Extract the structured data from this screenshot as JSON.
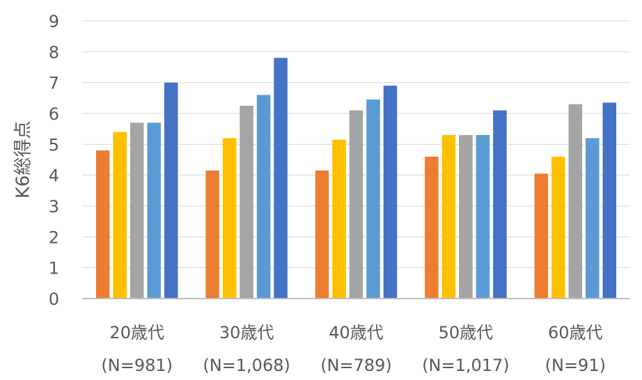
{
  "chart_data": {
    "type": "bar",
    "ylabel": "K6総得点",
    "ylim": [
      0,
      9
    ],
    "yticks": [
      0,
      1,
      2,
      3,
      4,
      5,
      6,
      7,
      8,
      9
    ],
    "grid": true,
    "categories": [
      {
        "line1": "20歳代",
        "line2": "(N=981)"
      },
      {
        "line1": "30歳代",
        "line2": "(N=1,068)"
      },
      {
        "line1": "40歳代",
        "line2": "(N=789)"
      },
      {
        "line1": "50歳代",
        "line2": "(N=1,017)"
      },
      {
        "line1": "60歳代",
        "line2": "(N=91)"
      }
    ],
    "series": [
      {
        "color": "#ED7D31",
        "values": [
          4.8,
          4.15,
          4.15,
          4.6,
          4.05
        ]
      },
      {
        "color": "#FFC000",
        "values": [
          5.4,
          5.2,
          5.15,
          5.3,
          4.6
        ]
      },
      {
        "color": "#A5A5A5",
        "values": [
          5.7,
          6.25,
          6.1,
          5.3,
          6.3
        ]
      },
      {
        "color": "#5B9BD5",
        "values": [
          5.7,
          6.6,
          6.45,
          5.3,
          5.2
        ]
      },
      {
        "color": "#4472C4",
        "values": [
          7.0,
          7.8,
          6.9,
          6.1,
          6.35
        ]
      }
    ]
  }
}
